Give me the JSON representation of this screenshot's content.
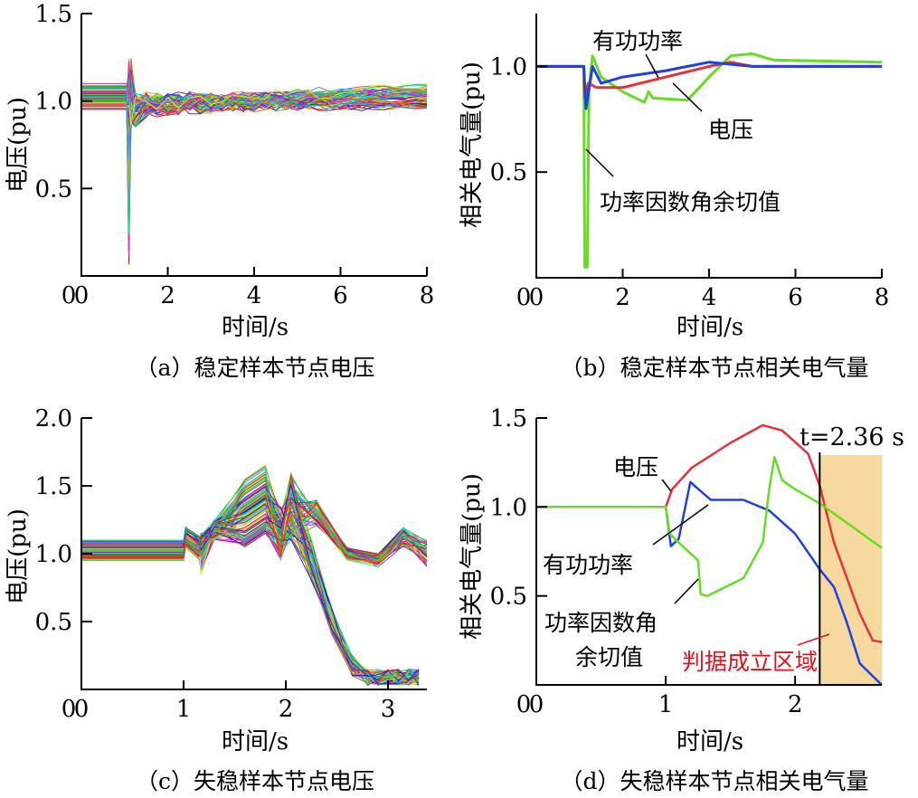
{
  "chart_data": [
    {
      "id": "a",
      "type": "line",
      "caption": "（a）稳定样本节点电压",
      "xlabel": "时间/s",
      "ylabel": "电压(pu)",
      "xlim": [
        0,
        8
      ],
      "ylim": [
        0,
        1.5
      ],
      "xticks": [
        "0",
        "2",
        "4",
        "6",
        "8"
      ],
      "yticks": [
        "0.5",
        "1.0",
        "1.5"
      ],
      "xtick_values": [
        0,
        2,
        4,
        6,
        8
      ],
      "ytick_values": [
        0.5,
        1.0,
        1.5
      ],
      "grid": false,
      "series_description": "bundle of node voltages"
    },
    {
      "id": "b",
      "type": "line",
      "caption": "（b）稳定样本节点相关电气量",
      "xlabel": "时间/s",
      "ylabel": "相关电气量(pu)",
      "xlim": [
        0,
        8
      ],
      "ylim": [
        0,
        1.25
      ],
      "xticks": [
        "0",
        "2",
        "4",
        "6",
        "8"
      ],
      "yticks": [
        "0.5",
        "1.0"
      ],
      "xtick_values": [
        0,
        2,
        4,
        6,
        8
      ],
      "ytick_values": [
        0.5,
        1.0
      ],
      "grid": false,
      "series": [
        {
          "name": "电压",
          "color": "#e8303a",
          "points": [
            [
              0,
              1.0
            ],
            [
              1.1,
              1.0
            ],
            [
              1.12,
              0.85
            ],
            [
              1.2,
              0.92
            ],
            [
              1.4,
              0.9
            ],
            [
              2,
              0.9
            ],
            [
              3,
              0.95
            ],
            [
              4,
              1.0
            ],
            [
              4.5,
              1.02
            ],
            [
              5,
              1.0
            ],
            [
              8,
              1.0
            ]
          ]
        },
        {
          "name": "有功功率",
          "color": "#2040e0",
          "points": [
            [
              0,
              1.0
            ],
            [
              1.1,
              1.0
            ],
            [
              1.15,
              0.8
            ],
            [
              1.3,
              1.0
            ],
            [
              1.5,
              0.92
            ],
            [
              2,
              0.95
            ],
            [
              3,
              0.98
            ],
            [
              4,
              1.02
            ],
            [
              5,
              1.0
            ],
            [
              8,
              1.0
            ]
          ]
        },
        {
          "name": "功率因数角余切值",
          "color": "#66dd22",
          "points": [
            [
              0,
              1.0
            ],
            [
              1.1,
              1.0
            ],
            [
              1.12,
              0.05
            ],
            [
              1.18,
              0.05
            ],
            [
              1.22,
              0.9
            ],
            [
              1.3,
              1.05
            ],
            [
              1.5,
              0.95
            ],
            [
              2,
              0.88
            ],
            [
              2.5,
              0.83
            ],
            [
              2.6,
              0.88
            ],
            [
              2.7,
              0.85
            ],
            [
              3.5,
              0.84
            ],
            [
              4,
              0.95
            ],
            [
              4.5,
              1.05
            ],
            [
              5,
              1.06
            ],
            [
              5.5,
              1.03
            ],
            [
              8,
              1.02
            ]
          ]
        }
      ]
    },
    {
      "id": "c",
      "type": "line",
      "caption": "（c）失稳样本节点电压",
      "xlabel": "时间/s",
      "ylabel": "电压(pu)",
      "xlim": [
        0,
        3.38
      ],
      "ylim": [
        0,
        2.0
      ],
      "xticks": [
        "0",
        "1",
        "2",
        "3"
      ],
      "yticks": [
        "0.5",
        "1.0",
        "1.5",
        "2.0"
      ],
      "xtick_values": [
        0,
        1,
        2,
        3
      ],
      "ytick_values": [
        0.5,
        1.0,
        1.5,
        2.0
      ],
      "grid": false,
      "series_description": "bundle of node voltages"
    },
    {
      "id": "d",
      "type": "line",
      "caption": "（d）失稳样本节点相关电气量",
      "xlabel": "时间/s",
      "ylabel": "相关电气量(pu)",
      "xlim": [
        0,
        2.67
      ],
      "ylim": [
        0,
        1.5
      ],
      "xticks": [
        "0",
        "1",
        "2"
      ],
      "yticks": [
        "0.5",
        "1.0",
        "1.5"
      ],
      "xtick_values": [
        0,
        1,
        2
      ],
      "ytick_values": [
        0.5,
        1.0,
        1.5
      ],
      "grid": false,
      "marker_label": "t=2.36 s",
      "region_label": "判据成立区域",
      "region_color": "#f7d9a0",
      "region_label_color": "#e8101a",
      "series": [
        {
          "name": "电压",
          "color": "#e8303a",
          "points": [
            [
              0,
              1.0
            ],
            [
              1.0,
              1.0
            ],
            [
              1.05,
              1.1
            ],
            [
              1.2,
              1.22
            ],
            [
              1.5,
              1.36
            ],
            [
              1.75,
              1.46
            ],
            [
              1.9,
              1.43
            ],
            [
              2.1,
              1.3
            ],
            [
              2.19,
              1.12
            ],
            [
              2.3,
              0.8
            ],
            [
              2.5,
              0.4
            ],
            [
              2.6,
              0.25
            ],
            [
              2.67,
              0.24
            ]
          ]
        },
        {
          "name": "有功功率",
          "color": "#2040e0",
          "points": [
            [
              0,
              1.0
            ],
            [
              1.0,
              1.0
            ],
            [
              1.04,
              0.78
            ],
            [
              1.1,
              0.82
            ],
            [
              1.19,
              1.14
            ],
            [
              1.3,
              1.07
            ],
            [
              1.35,
              1.04
            ],
            [
              1.6,
              1.04
            ],
            [
              1.8,
              0.98
            ],
            [
              2,
              0.85
            ],
            [
              2.19,
              0.65
            ],
            [
              2.3,
              0.55
            ],
            [
              2.4,
              0.35
            ],
            [
              2.5,
              0.12
            ],
            [
              2.67,
              0.0
            ]
          ]
        },
        {
          "name": "功率因数角余切值",
          "color": "#66dd22",
          "points": [
            [
              0,
              1.0
            ],
            [
              1.0,
              1.0
            ],
            [
              1.03,
              0.85
            ],
            [
              1.1,
              0.8
            ],
            [
              1.25,
              0.7
            ],
            [
              1.27,
              0.51
            ],
            [
              1.32,
              0.5
            ],
            [
              1.6,
              0.6
            ],
            [
              1.75,
              0.8
            ],
            [
              1.8,
              1.1
            ],
            [
              1.84,
              1.28
            ],
            [
              1.9,
              1.15
            ],
            [
              2.0,
              1.1
            ],
            [
              2.19,
              1.02
            ],
            [
              2.67,
              0.77
            ]
          ]
        }
      ],
      "annotations": [
        "电压",
        "有功功率",
        "功率因数角",
        "余切值"
      ]
    }
  ],
  "annotations_b": [
    "有功功率",
    "电压",
    "功率因数角余切值"
  ]
}
